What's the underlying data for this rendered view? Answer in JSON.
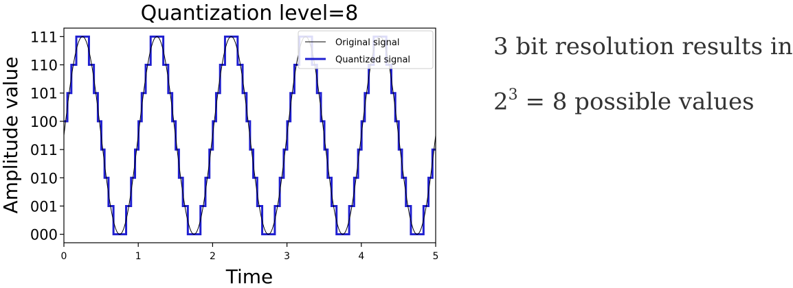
{
  "chart_data": {
    "type": "line",
    "title": "Quantization level=8",
    "xlabel": "Time",
    "ylabel": "Amplitude value",
    "xlim": [
      0,
      5
    ],
    "ylim": [
      -0.3,
      7.3
    ],
    "x_ticks": [
      0,
      1,
      2,
      3,
      4,
      5
    ],
    "x_tick_labels": [
      "0",
      "1",
      "2",
      "3",
      "4",
      "5"
    ],
    "y_ticks": [
      0,
      1,
      2,
      3,
      4,
      5,
      6,
      7
    ],
    "y_tick_labels": [
      "000",
      "001",
      "010",
      "011",
      "100",
      "101",
      "110",
      "111"
    ],
    "legend_position": "top-right",
    "series": [
      {
        "name": "Original signal",
        "color": "#000000",
        "style": "thin-line",
        "function": "3.5 + 3.5*sin(2*pi*x)",
        "frequency": 1,
        "amplitude": 3.5,
        "offset": 3.5
      },
      {
        "name": "Quantized signal",
        "color": "#1f1fd0",
        "style": "thick-step",
        "function": "round(3.5 + 3.5*sin(2*pi*x))",
        "levels": 8
      }
    ]
  },
  "caption": {
    "line1": "3 bit resolution results in",
    "line2_base": "2",
    "line2_exp": "3",
    "line2_rest": " = 8 possible values"
  }
}
